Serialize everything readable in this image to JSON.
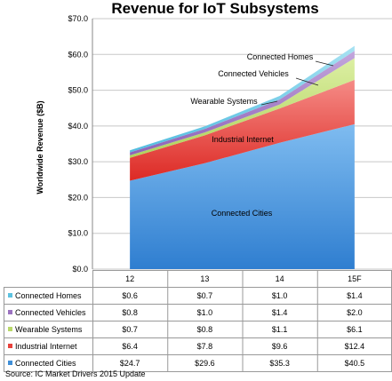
{
  "chart_data": {
    "type": "area",
    "title": "Revenue for IoT Subsystems",
    "ylabel": "Worldwide Revenue ($B)",
    "xlabel": "",
    "categories": [
      "12",
      "13",
      "14",
      "15F"
    ],
    "ylim": [
      0,
      70
    ],
    "yticks": [
      "$0.0",
      "$10.0",
      "$20.0",
      "$30.0",
      "$40.0",
      "$50.0",
      "$60.0",
      "$70.0"
    ],
    "grid": true,
    "stacked": true,
    "series": [
      {
        "name": "Connected Cities",
        "values": [
          24.7,
          29.6,
          35.3,
          40.5
        ],
        "labels": [
          "$24.7",
          "$29.6",
          "$35.3",
          "$40.5"
        ],
        "color": "#3f8fd8"
      },
      {
        "name": "Industrial Internet",
        "values": [
          6.4,
          7.8,
          9.6,
          12.4
        ],
        "labels": [
          "$6.4",
          "$7.8",
          "$9.6",
          "$12.4"
        ],
        "color": "#e8413c"
      },
      {
        "name": "Wearable Systems",
        "values": [
          0.7,
          0.8,
          1.1,
          6.1
        ],
        "labels": [
          "$0.7",
          "$0.8",
          "$1.1",
          "$6.1"
        ],
        "color": "#b9d86a"
      },
      {
        "name": "Connected Vehicles",
        "values": [
          0.8,
          1.0,
          1.4,
          2.0
        ],
        "labels": [
          "$0.8",
          "$1.0",
          "$1.4",
          "$2.0"
        ],
        "color": "#9b72c0"
      },
      {
        "name": "Connected Homes",
        "values": [
          0.6,
          0.7,
          1.0,
          1.4
        ],
        "labels": [
          "$0.6",
          "$0.7",
          "$1.0",
          "$1.4"
        ],
        "color": "#5cc2e0"
      }
    ],
    "table_row_order": [
      "Connected Homes",
      "Connected Vehicles",
      "Wearable Systems",
      "Industrial Internet",
      "Connected Cities"
    ],
    "area_labels": [
      "Connected Homes",
      "Connected Vehicles",
      "Wearable Systems",
      "Industrial Internet",
      "Connected Cities"
    ]
  },
  "source": "Source:  IC Market Drivers 2015 Update"
}
